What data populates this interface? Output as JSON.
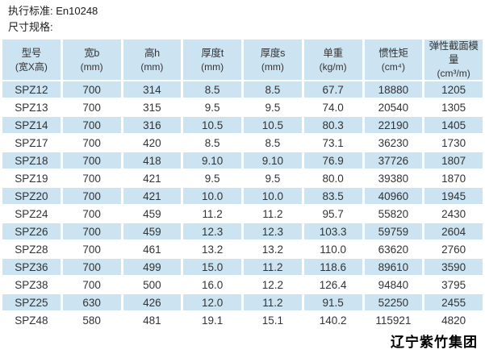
{
  "page": {
    "standard_line": "执行标准: En10248",
    "spec_line": "尺寸规格:",
    "brand": "辽宁紫竹集团"
  },
  "colors": {
    "stripe_blue": "#cce3f1",
    "text": "#333333",
    "background": "#ffffff"
  },
  "table": {
    "columns": [
      {
        "label": "型号",
        "unit": "(宽X高)"
      },
      {
        "label": "宽b",
        "unit": "(mm)"
      },
      {
        "label": "高h",
        "unit": "(mm)"
      },
      {
        "label": "厚度t",
        "unit": "(mm)"
      },
      {
        "label": "厚度s",
        "unit": "(mm)"
      },
      {
        "label": "单重",
        "unit": "(kg/m)"
      },
      {
        "label": "惯性矩",
        "unit": "(cm⁴)"
      },
      {
        "label": "弹性截面模量",
        "unit": "(cm³/m)"
      }
    ],
    "rows": [
      [
        "SPZ12",
        "700",
        "314",
        "8.5",
        "8.5",
        "67.7",
        "18880",
        "1205"
      ],
      [
        "SPZ13",
        "700",
        "315",
        "9.5",
        "9.5",
        "74.0",
        "20540",
        "1305"
      ],
      [
        "SPZ14",
        "700",
        "316",
        "10.5",
        "10.5",
        "80.3",
        "22190",
        "1405"
      ],
      [
        "SPZ17",
        "700",
        "420",
        "8.5",
        "8.5",
        "73.1",
        "36230",
        "1730"
      ],
      [
        "SPZ18",
        "700",
        "418",
        "9.10",
        "9.10",
        "76.9",
        "37726",
        "1807"
      ],
      [
        "SPZ19",
        "700",
        "421",
        "9.5",
        "9.5",
        "80.0",
        "39380",
        "1870"
      ],
      [
        "SPZ20",
        "700",
        "421",
        "10.0",
        "10.0",
        "83.5",
        "40960",
        "1945"
      ],
      [
        "SPZ24",
        "700",
        "459",
        "11.2",
        "11.2",
        "95.7",
        "55820",
        "2430"
      ],
      [
        "SPZ26",
        "700",
        "459",
        "12.3",
        "12.3",
        "103.3",
        "59759",
        "2604"
      ],
      [
        "SPZ28",
        "700",
        "461",
        "13.2",
        "13.2",
        "110.0",
        "63620",
        "2760"
      ],
      [
        "SPZ36",
        "700",
        "499",
        "15.0",
        "11.2",
        "118.6",
        "89610",
        "3590"
      ],
      [
        "SPZ38",
        "700",
        "500",
        "16.0",
        "12.2",
        "126.4",
        "94840",
        "3795"
      ],
      [
        "SPZ25",
        "630",
        "426",
        "12.0",
        "11.2",
        "91.5",
        "52250",
        "2455"
      ],
      [
        "SPZ48",
        "580",
        "481",
        "19.1",
        "15.1",
        "140.2",
        "115921",
        "4820"
      ]
    ]
  }
}
